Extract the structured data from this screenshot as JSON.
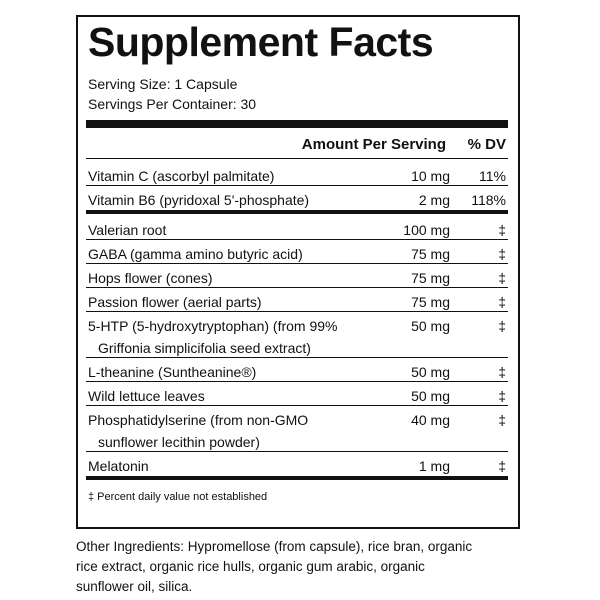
{
  "title": "Supplement Facts",
  "serving_size": "Serving Size: 1 Capsule",
  "servings_per_container": "Servings Per Container: 30",
  "table": {
    "header": {
      "amount": "Amount Per Serving",
      "dv": "% DV"
    },
    "groups": [
      [
        {
          "name": [
            "Vitamin C (ascorbyl palmitate)"
          ],
          "amount": "10 mg",
          "dv": "11%"
        },
        {
          "name": [
            "Vitamin B6 (pyridoxal 5'-phosphate)"
          ],
          "amount": "2 mg",
          "dv": "118%"
        }
      ],
      [
        {
          "name": [
            "Valerian root"
          ],
          "amount": "100 mg",
          "dv": "‡"
        },
        {
          "name": [
            "GABA (gamma amino butyric acid)"
          ],
          "amount": "75 mg",
          "dv": "‡"
        },
        {
          "name": [
            "Hops flower (cones)"
          ],
          "amount": "75 mg",
          "dv": "‡"
        },
        {
          "name": [
            "Passion flower (aerial parts)"
          ],
          "amount": "75 mg",
          "dv": "‡"
        },
        {
          "name": [
            "5-HTP (5-hydroxytryptophan) (from 99%",
            "Griffonia simplicifolia seed extract)"
          ],
          "amount": "50 mg",
          "dv": "‡"
        },
        {
          "name": [
            "L-theanine (Suntheanine®)"
          ],
          "amount": "50 mg",
          "dv": "‡"
        },
        {
          "name": [
            "Wild lettuce leaves"
          ],
          "amount": "50 mg",
          "dv": "‡"
        },
        {
          "name": [
            "Phosphatidylserine (from non-GMO",
            "sunflower lecithin powder)"
          ],
          "amount": "40 mg",
          "dv": "‡"
        },
        {
          "name": [
            "Melatonin"
          ],
          "amount": "1 mg",
          "dv": "‡"
        }
      ]
    ]
  },
  "footnote": "‡ Percent daily value not established",
  "other_ingredients": [
    "Other Ingredients: Hypromellose (from capsule), rice bran, organic",
    "rice extract, organic rice hulls, organic gum arabic, organic",
    "sunflower oil, silica."
  ]
}
